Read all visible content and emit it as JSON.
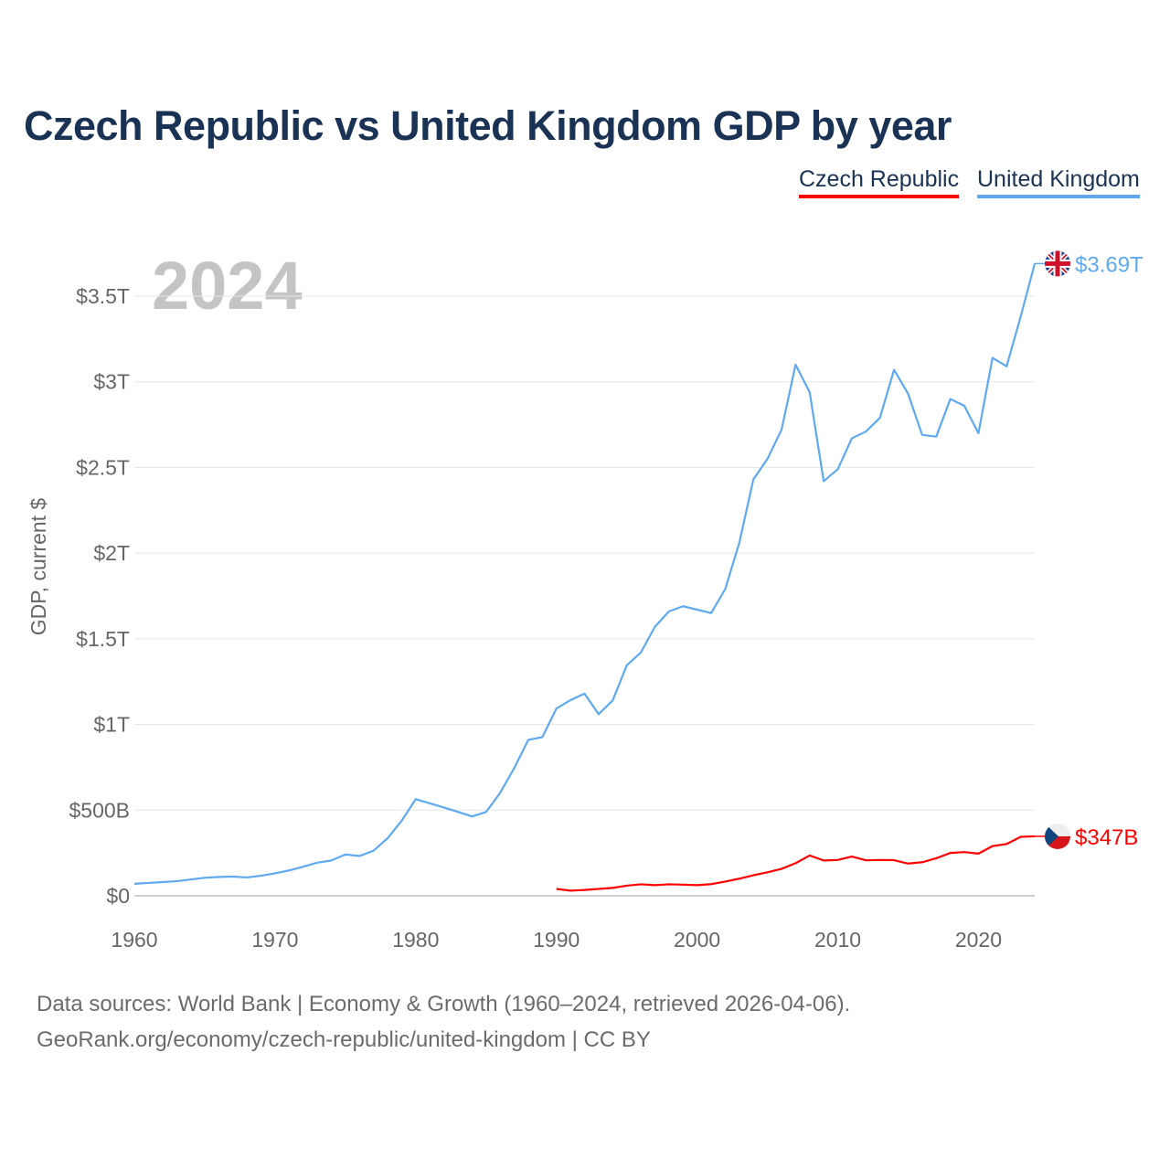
{
  "title": "Czech Republic vs United Kingdom GDP by year",
  "legend": [
    {
      "label": "Czech Republic",
      "color": "#ff0000"
    },
    {
      "label": "United Kingdom",
      "color": "#5ea9ef"
    }
  ],
  "footer": {
    "line1": "Data sources: World Bank | Economy & Growth (1960–2024, retrieved 2026-04-06).",
    "line2": "GeoRank.org/economy/czech-republic/united-kingdom | CC BY"
  },
  "chart_data": {
    "type": "line",
    "title": "Czech Republic vs United Kingdom GDP by year",
    "year_label": "2024",
    "ylabel": "GDP, current $",
    "xlim": [
      1960,
      2024
    ],
    "ylim": [
      0,
      3.5
    ],
    "y_unit": "trillion USD",
    "x_ticks": [
      1960,
      1970,
      1980,
      1990,
      2000,
      2010,
      2020
    ],
    "y_ticks": [
      {
        "v": 0,
        "label": "$0"
      },
      {
        "v": 0.5,
        "label": "$500B"
      },
      {
        "v": 1,
        "label": "$1T"
      },
      {
        "v": 1.5,
        "label": "$1.5T"
      },
      {
        "v": 2,
        "label": "$2T"
      },
      {
        "v": 2.5,
        "label": "$2.5T"
      },
      {
        "v": 3,
        "label": "$3T"
      },
      {
        "v": 3.5,
        "label": "$3.5T"
      }
    ],
    "grid": true,
    "series": [
      {
        "name": "United Kingdom",
        "color": "#5ea9ef",
        "end_label": "$3.69T",
        "flag": "uk-flag",
        "start_year": 1960,
        "values": [
          0.07,
          0.075,
          0.08,
          0.085,
          0.095,
          0.105,
          0.11,
          0.112,
          0.107,
          0.117,
          0.131,
          0.148,
          0.17,
          0.193,
          0.206,
          0.241,
          0.232,
          0.263,
          0.336,
          0.438,
          0.564,
          0.54,
          0.515,
          0.49,
          0.463,
          0.489,
          0.601,
          0.745,
          0.91,
          0.926,
          1.093,
          1.142,
          1.18,
          1.06,
          1.14,
          1.345,
          1.42,
          1.57,
          1.66,
          1.69,
          1.67,
          1.65,
          1.79,
          2.06,
          2.43,
          2.55,
          2.72,
          3.1,
          2.94,
          2.42,
          2.49,
          2.67,
          2.71,
          2.79,
          3.07,
          2.93,
          2.69,
          2.68,
          2.9,
          2.86,
          2.7,
          3.14,
          3.09,
          3.38,
          3.69
        ]
      },
      {
        "name": "Czech Republic",
        "color": "#ff0000",
        "end_label": "$347B",
        "flag": "czech-flag",
        "start_year": 1990,
        "values": [
          0.04,
          0.03,
          0.034,
          0.04,
          0.046,
          0.059,
          0.067,
          0.062,
          0.067,
          0.065,
          0.062,
          0.068,
          0.083,
          0.1,
          0.12,
          0.137,
          0.157,
          0.19,
          0.235,
          0.206,
          0.209,
          0.229,
          0.207,
          0.209,
          0.208,
          0.188,
          0.196,
          0.219,
          0.25,
          0.255,
          0.246,
          0.29,
          0.302,
          0.344,
          0.347
        ]
      }
    ]
  }
}
